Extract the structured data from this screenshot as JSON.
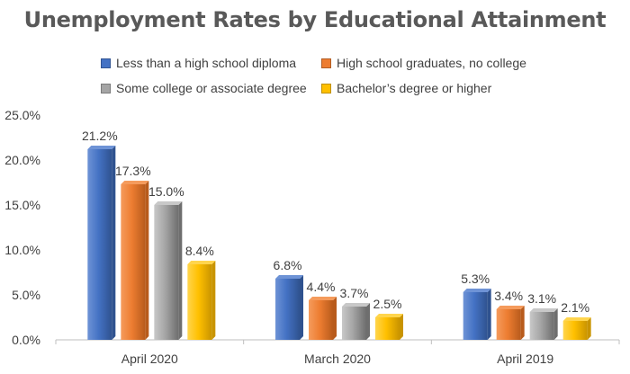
{
  "chart_data": {
    "type": "bar",
    "title": "Unemployment Rates by Educational Attainment",
    "categories": [
      "April 2020",
      "March 2020",
      "April 2019"
    ],
    "series": [
      {
        "name": "Less than a high school diploma",
        "values": [
          21.2,
          6.8,
          5.3
        ],
        "labels": [
          "21.2%",
          "6.8%",
          "5.3%"
        ],
        "color": "#4472C4",
        "color_dark": "#2F528F",
        "color_light": "#6E93D6"
      },
      {
        "name": "High school graduates, no college",
        "values": [
          17.3,
          4.4,
          3.4
        ],
        "labels": [
          "17.3%",
          "4.4%",
          "3.4%"
        ],
        "color": "#ED7D31",
        "color_dark": "#B85B1C",
        "color_light": "#F59B5C"
      },
      {
        "name": "Some college or associate degree",
        "values": [
          15.0,
          3.7,
          3.1
        ],
        "labels": [
          "15.0%",
          "3.7%",
          "3.1%"
        ],
        "color": "#A5A5A5",
        "color_dark": "#6E6E6E",
        "color_light": "#C8C8C8"
      },
      {
        "name": "Bachelor’s degree or higher",
        "values": [
          8.4,
          2.5,
          2.1
        ],
        "labels": [
          "8.4%",
          "2.5%",
          "2.1%"
        ],
        "color": "#FFC000",
        "color_dark": "#C99400",
        "color_light": "#FFD54D"
      }
    ],
    "xlabel": "",
    "ylabel": "",
    "ylim": [
      0,
      25
    ],
    "yticks": [
      "0.0%",
      "5.0%",
      "10.0%",
      "15.0%",
      "20.0%",
      "25.0%"
    ],
    "grid": false,
    "legend_position": "top"
  }
}
